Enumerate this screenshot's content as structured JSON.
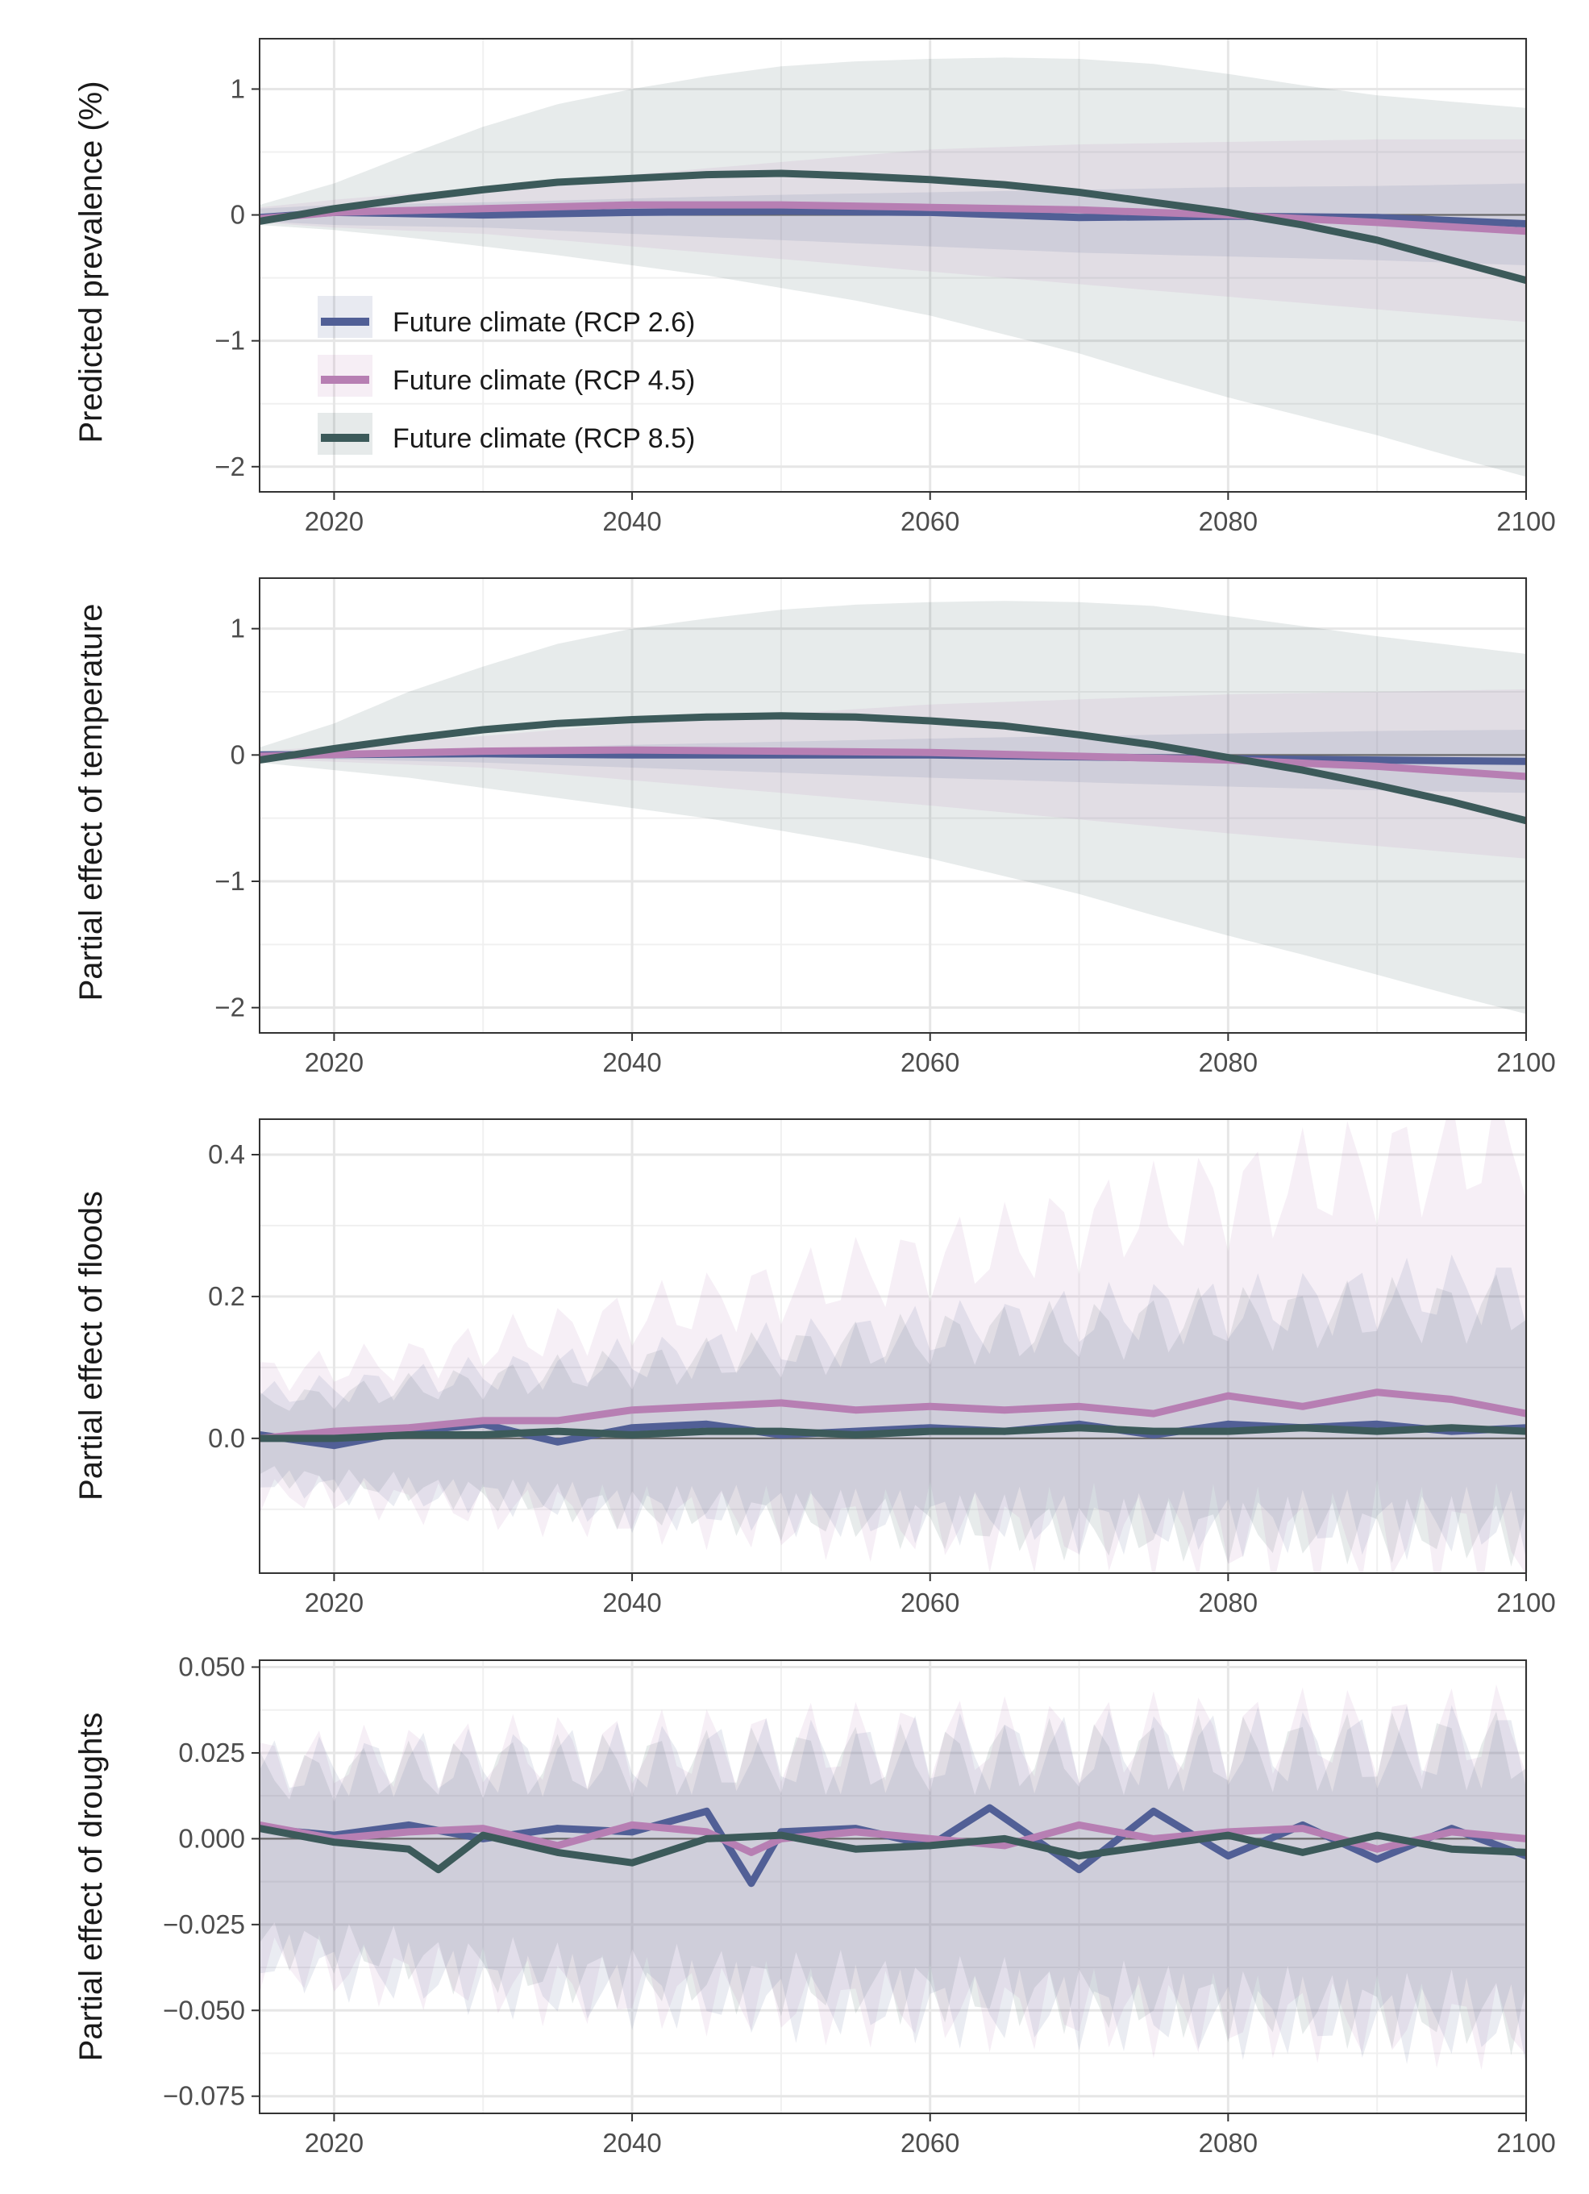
{
  "legend": {
    "entries": [
      {
        "label": "Future climate (RCP 2.6)",
        "color": "#515f96"
      },
      {
        "label": "Future climate (RCP 4.5)",
        "color": "#b77fb3"
      },
      {
        "label": "Future climate (RCP 8.5)",
        "color": "#3c5a5a"
      }
    ]
  },
  "chart_data": [
    {
      "type": "line",
      "ylabel": "Predicted prevalence (%)",
      "xlabel": "",
      "xlim": [
        2015,
        2100
      ],
      "ylim": [
        -2.2,
        1.4
      ],
      "xticks": [
        "2020",
        "2040",
        "2060",
        "2080",
        "2100"
      ],
      "yticks": [
        {
          "value": 1,
          "label": "1"
        },
        {
          "value": 0,
          "label": "0"
        },
        {
          "value": -1,
          "label": "−1"
        },
        {
          "value": -2,
          "label": "−2"
        }
      ],
      "grid": true,
      "legend_position": "inside-bottom-left",
      "series": [
        {
          "name": "Future climate (RCP 2.6)",
          "color": "#515f96",
          "x": [
            2015,
            2020,
            2030,
            2040,
            2050,
            2060,
            2070,
            2080,
            2090,
            2100
          ],
          "y": [
            -0.02,
            0.02,
            0.0,
            0.02,
            0.03,
            0.02,
            -0.02,
            -0.01,
            -0.02,
            -0.07
          ],
          "band_lower": [
            -0.05,
            -0.08,
            -0.1,
            -0.15,
            -0.2,
            -0.25,
            -0.3,
            -0.33,
            -0.36,
            -0.4
          ],
          "band_upper": [
            0.05,
            0.08,
            0.1,
            0.13,
            0.16,
            0.18,
            0.2,
            0.22,
            0.23,
            0.25
          ]
        },
        {
          "name": "Future climate (RCP 4.5)",
          "color": "#b77fb3",
          "x": [
            2015,
            2020,
            2030,
            2040,
            2050,
            2060,
            2070,
            2080,
            2090,
            2100
          ],
          "y": [
            -0.03,
            0.02,
            0.05,
            0.08,
            0.08,
            0.06,
            0.04,
            0.0,
            -0.06,
            -0.13
          ],
          "band_lower": [
            -0.06,
            -0.1,
            -0.15,
            -0.25,
            -0.35,
            -0.45,
            -0.55,
            -0.65,
            -0.75,
            -0.85
          ],
          "band_upper": [
            0.06,
            0.12,
            0.22,
            0.32,
            0.42,
            0.52,
            0.56,
            0.58,
            0.6,
            0.6
          ]
        },
        {
          "name": "Future climate (RCP 8.5)",
          "color": "#3c5a5a",
          "x": [
            2015,
            2020,
            2025,
            2030,
            2035,
            2040,
            2045,
            2050,
            2055,
            2060,
            2065,
            2070,
            2075,
            2080,
            2085,
            2090,
            2095,
            2100
          ],
          "y": [
            -0.05,
            0.05,
            0.13,
            0.2,
            0.26,
            0.29,
            0.32,
            0.33,
            0.31,
            0.28,
            0.24,
            0.18,
            0.1,
            0.02,
            -0.08,
            -0.2,
            -0.36,
            -0.52
          ],
          "band_lower": [
            -0.08,
            -0.12,
            -0.18,
            -0.25,
            -0.32,
            -0.4,
            -0.48,
            -0.58,
            -0.68,
            -0.8,
            -0.95,
            -1.1,
            -1.28,
            -1.45,
            -1.6,
            -1.75,
            -1.92,
            -2.08
          ],
          "band_upper": [
            0.08,
            0.25,
            0.48,
            0.7,
            0.88,
            1.0,
            1.1,
            1.18,
            1.22,
            1.24,
            1.25,
            1.24,
            1.2,
            1.12,
            1.03,
            0.95,
            0.9,
            0.85
          ]
        }
      ]
    },
    {
      "type": "line",
      "ylabel": "Partial effect of temperature",
      "xlabel": "",
      "xlim": [
        2015,
        2100
      ],
      "ylim": [
        -2.2,
        1.4
      ],
      "xticks": [
        "2020",
        "2040",
        "2060",
        "2080",
        "2100"
      ],
      "yticks": [
        {
          "value": 1,
          "label": "1"
        },
        {
          "value": 0,
          "label": "0"
        },
        {
          "value": -1,
          "label": "−1"
        },
        {
          "value": -2,
          "label": "−2"
        }
      ],
      "grid": true,
      "series": [
        {
          "name": "Future climate (RCP 2.6)",
          "color": "#515f96",
          "x": [
            2015,
            2030,
            2040,
            2060,
            2080,
            2090,
            2100
          ],
          "y": [
            0.0,
            0.01,
            0.0,
            0.0,
            -0.03,
            -0.04,
            -0.05
          ],
          "band_lower": [
            -0.02,
            -0.06,
            -0.1,
            -0.18,
            -0.25,
            -0.28,
            -0.3
          ],
          "band_upper": [
            0.02,
            0.05,
            0.08,
            0.13,
            0.17,
            0.19,
            0.2
          ]
        },
        {
          "name": "Future climate (RCP 4.5)",
          "color": "#b77fb3",
          "x": [
            2015,
            2030,
            2040,
            2060,
            2080,
            2090,
            2100
          ],
          "y": [
            -0.01,
            0.03,
            0.04,
            0.02,
            -0.04,
            -0.09,
            -0.17
          ],
          "band_lower": [
            -0.03,
            -0.1,
            -0.2,
            -0.4,
            -0.62,
            -0.72,
            -0.82
          ],
          "band_upper": [
            0.03,
            0.15,
            0.25,
            0.4,
            0.48,
            0.5,
            0.52
          ]
        },
        {
          "name": "Future climate (RCP 8.5)",
          "color": "#3c5a5a",
          "x": [
            2015,
            2020,
            2025,
            2030,
            2035,
            2040,
            2045,
            2050,
            2055,
            2060,
            2065,
            2070,
            2075,
            2080,
            2085,
            2090,
            2095,
            2100
          ],
          "y": [
            -0.04,
            0.05,
            0.13,
            0.2,
            0.25,
            0.28,
            0.3,
            0.31,
            0.3,
            0.27,
            0.23,
            0.16,
            0.08,
            -0.02,
            -0.12,
            -0.24,
            -0.37,
            -0.52
          ],
          "band_lower": [
            -0.06,
            -0.12,
            -0.18,
            -0.26,
            -0.34,
            -0.42,
            -0.5,
            -0.6,
            -0.7,
            -0.82,
            -0.96,
            -1.1,
            -1.27,
            -1.43,
            -1.58,
            -1.74,
            -1.9,
            -2.05
          ],
          "band_upper": [
            0.06,
            0.25,
            0.5,
            0.7,
            0.88,
            1.0,
            1.08,
            1.15,
            1.19,
            1.21,
            1.22,
            1.21,
            1.18,
            1.1,
            1.02,
            0.94,
            0.87,
            0.8
          ]
        }
      ]
    },
    {
      "type": "line",
      "ylabel": "Partial effect of floods",
      "xlabel": "",
      "xlim": [
        2015,
        2100
      ],
      "ylim": [
        -0.19,
        0.45
      ],
      "xticks": [
        "2020",
        "2040",
        "2060",
        "2080",
        "2100"
      ],
      "yticks": [
        {
          "value": 0.4,
          "label": "0.4"
        },
        {
          "value": 0.2,
          "label": "0.2"
        },
        {
          "value": 0.0,
          "label": "0.0"
        }
      ],
      "grid": true,
      "series": [
        {
          "name": "Future climate (RCP 2.6)",
          "color": "#515f96",
          "x": [
            2015,
            2020,
            2025,
            2030,
            2035,
            2040,
            2045,
            2050,
            2055,
            2060,
            2065,
            2070,
            2075,
            2080,
            2085,
            2090,
            2095,
            2100
          ],
          "y": [
            0.005,
            -0.01,
            0.01,
            0.02,
            -0.005,
            0.015,
            0.02,
            0.005,
            0.01,
            0.015,
            0.01,
            0.02,
            0.005,
            0.02,
            0.015,
            0.02,
            0.01,
            0.015
          ],
          "band_lower": [
            -0.06,
            -0.07,
            -0.08,
            -0.08,
            -0.09,
            -0.1,
            -0.1,
            -0.1,
            -0.11,
            -0.11,
            -0.11,
            -0.12,
            -0.12,
            -0.12,
            -0.12,
            -0.12,
            -0.12,
            -0.12
          ],
          "band_upper": [
            0.06,
            0.07,
            0.08,
            0.09,
            0.1,
            0.11,
            0.12,
            0.13,
            0.14,
            0.15,
            0.16,
            0.17,
            0.18,
            0.18,
            0.19,
            0.2,
            0.21,
            0.21
          ]
        },
        {
          "name": "Future climate (RCP 4.5)",
          "color": "#b77fb3",
          "x": [
            2015,
            2020,
            2025,
            2030,
            2035,
            2040,
            2045,
            2050,
            2055,
            2060,
            2065,
            2070,
            2075,
            2080,
            2085,
            2090,
            2095,
            2100
          ],
          "y": [
            0.0,
            0.01,
            0.015,
            0.025,
            0.025,
            0.04,
            0.045,
            0.05,
            0.04,
            0.045,
            0.04,
            0.045,
            0.035,
            0.06,
            0.045,
            0.065,
            0.055,
            0.035
          ],
          "band_lower": [
            -0.08,
            -0.08,
            -0.09,
            -0.1,
            -0.1,
            -0.11,
            -0.11,
            -0.12,
            -0.12,
            -0.12,
            -0.13,
            -0.13,
            -0.13,
            -0.14,
            -0.14,
            -0.14,
            -0.14,
            -0.14
          ],
          "band_upper": [
            0.09,
            0.1,
            0.11,
            0.13,
            0.15,
            0.17,
            0.19,
            0.21,
            0.23,
            0.25,
            0.27,
            0.3,
            0.32,
            0.34,
            0.36,
            0.38,
            0.4,
            0.42
          ]
        },
        {
          "name": "Future climate (RCP 8.5)",
          "color": "#3c5a5a",
          "x": [
            2015,
            2020,
            2025,
            2030,
            2035,
            2040,
            2045,
            2050,
            2055,
            2060,
            2065,
            2070,
            2075,
            2080,
            2085,
            2090,
            2095,
            2100
          ],
          "y": [
            0.0,
            0.0,
            0.005,
            0.005,
            0.01,
            0.005,
            0.01,
            0.01,
            0.005,
            0.01,
            0.01,
            0.015,
            0.01,
            0.01,
            0.015,
            0.01,
            0.015,
            0.01
          ],
          "band_lower": [
            -0.05,
            -0.06,
            -0.07,
            -0.08,
            -0.09,
            -0.1,
            -0.1,
            -0.11,
            -0.11,
            -0.12,
            -0.12,
            -0.13,
            -0.13,
            -0.13,
            -0.13,
            -0.13,
            -0.13,
            -0.13
          ],
          "band_upper": [
            0.05,
            0.06,
            0.07,
            0.08,
            0.09,
            0.1,
            0.11,
            0.12,
            0.13,
            0.14,
            0.15,
            0.15,
            0.16,
            0.17,
            0.17,
            0.18,
            0.18,
            0.19
          ]
        }
      ]
    },
    {
      "type": "line",
      "ylabel": "Partial effect of droughts",
      "xlabel": "",
      "xlim": [
        2015,
        2100
      ],
      "ylim": [
        -0.08,
        0.052
      ],
      "xticks": [
        "2020",
        "2040",
        "2060",
        "2080",
        "2100"
      ],
      "yticks": [
        {
          "value": 0.05,
          "label": "0.050"
        },
        {
          "value": 0.025,
          "label": "0.025"
        },
        {
          "value": 0.0,
          "label": "0.000"
        },
        {
          "value": -0.025,
          "label": "−0.025"
        },
        {
          "value": -0.05,
          "label": "−0.050"
        },
        {
          "value": -0.075,
          "label": "−0.075"
        }
      ],
      "grid": true,
      "series": [
        {
          "name": "Future climate (RCP 2.6)",
          "color": "#515f96",
          "x": [
            2015,
            2020,
            2025,
            2030,
            2035,
            2040,
            2045,
            2048,
            2050,
            2055,
            2060,
            2064,
            2070,
            2075,
            2080,
            2085,
            2090,
            2095,
            2100
          ],
          "y": [
            0.003,
            0.001,
            0.004,
            0.0,
            0.003,
            0.002,
            0.008,
            -0.013,
            0.002,
            0.003,
            -0.002,
            0.009,
            -0.009,
            0.008,
            -0.005,
            0.004,
            -0.006,
            0.003,
            -0.005
          ],
          "band_lower": [
            -0.035,
            -0.038,
            -0.04,
            -0.042,
            -0.044,
            -0.045,
            -0.046,
            -0.047,
            -0.048,
            -0.048,
            -0.049,
            -0.05,
            -0.05,
            -0.051,
            -0.052,
            -0.052,
            -0.053,
            -0.053,
            -0.054
          ],
          "band_upper": [
            0.02,
            0.021,
            0.022,
            0.022,
            0.023,
            0.023,
            0.024,
            0.024,
            0.024,
            0.024,
            0.025,
            0.025,
            0.025,
            0.026,
            0.026,
            0.026,
            0.026,
            0.027,
            0.027
          ]
        },
        {
          "name": "Future climate (RCP 4.5)",
          "color": "#b77fb3",
          "x": [
            2015,
            2020,
            2025,
            2030,
            2035,
            2040,
            2045,
            2048,
            2050,
            2055,
            2060,
            2065,
            2070,
            2075,
            2080,
            2085,
            2090,
            2095,
            2100
          ],
          "y": [
            0.004,
            0.0,
            0.002,
            0.003,
            -0.002,
            0.004,
            0.002,
            -0.004,
            0.0,
            0.002,
            0.0,
            -0.002,
            0.004,
            0.0,
            0.002,
            0.003,
            -0.003,
            0.002,
            0.0
          ],
          "band_lower": [
            -0.036,
            -0.038,
            -0.04,
            -0.042,
            -0.044,
            -0.045,
            -0.046,
            -0.047,
            -0.048,
            -0.049,
            -0.049,
            -0.05,
            -0.05,
            -0.051,
            -0.052,
            -0.052,
            -0.053,
            -0.054,
            -0.055
          ],
          "band_upper": [
            0.022,
            0.023,
            0.024,
            0.025,
            0.026,
            0.026,
            0.027,
            0.027,
            0.028,
            0.028,
            0.029,
            0.029,
            0.029,
            0.03,
            0.03,
            0.031,
            0.031,
            0.031,
            0.032
          ]
        },
        {
          "name": "Future climate (RCP 8.5)",
          "color": "#3c5a5a",
          "x": [
            2015,
            2020,
            2025,
            2027,
            2030,
            2035,
            2040,
            2045,
            2050,
            2055,
            2060,
            2065,
            2070,
            2075,
            2080,
            2085,
            2090,
            2095,
            2100
          ],
          "y": [
            0.003,
            -0.001,
            -0.003,
            -0.009,
            0.001,
            -0.004,
            -0.007,
            0.0,
            0.001,
            -0.003,
            -0.002,
            0.0,
            -0.005,
            -0.002,
            0.001,
            -0.004,
            0.001,
            -0.003,
            -0.004
          ],
          "band_lower": [
            -0.03,
            -0.032,
            -0.034,
            -0.036,
            -0.037,
            -0.039,
            -0.04,
            -0.041,
            -0.042,
            -0.043,
            -0.044,
            -0.045,
            -0.046,
            -0.047,
            -0.048,
            -0.049,
            -0.05,
            -0.05,
            -0.051
          ],
          "band_upper": [
            0.018,
            0.019,
            0.02,
            0.02,
            0.021,
            0.021,
            0.022,
            0.022,
            0.023,
            0.023,
            0.023,
            0.024,
            0.024,
            0.024,
            0.025,
            0.025,
            0.025,
            0.026,
            0.026
          ]
        }
      ]
    }
  ]
}
